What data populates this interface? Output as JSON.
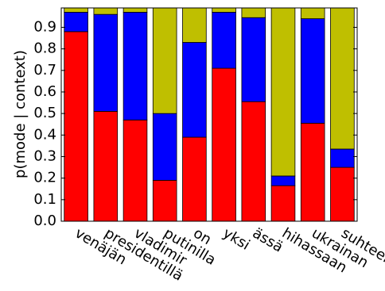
{
  "chart_data": {
    "type": "stacked-bar",
    "y_label": "p(mode | context)",
    "categories": [
      "venäjän",
      "presidentillä",
      "vladimir",
      "putinilla",
      "on",
      "yksi",
      "ässä",
      "hihassaan",
      "ukrainan",
      "suhteen"
    ],
    "series": [
      {
        "color": "#ff0000",
        "values": [
          0.88,
          0.51,
          0.47,
          0.19,
          0.39,
          0.71,
          0.555,
          0.165,
          0.455,
          0.25
        ]
      },
      {
        "color": "#0000ff",
        "values": [
          0.09,
          0.45,
          0.5,
          0.31,
          0.44,
          0.26,
          0.39,
          0.045,
          0.485,
          0.085
        ]
      },
      {
        "color": "#bfbf00",
        "values": [
          0.03,
          0.04,
          0.03,
          0.5,
          0.17,
          0.03,
          0.055,
          0.79,
          0.06,
          0.665
        ]
      }
    ],
    "ylim": [
      0,
      0.99
    ],
    "yticks": [
      {
        "value": 0,
        "label": "0.0"
      },
      0.1,
      0.2,
      0.3,
      0.4,
      0.5,
      0.6,
      0.7,
      0.8,
      0.9
    ]
  }
}
